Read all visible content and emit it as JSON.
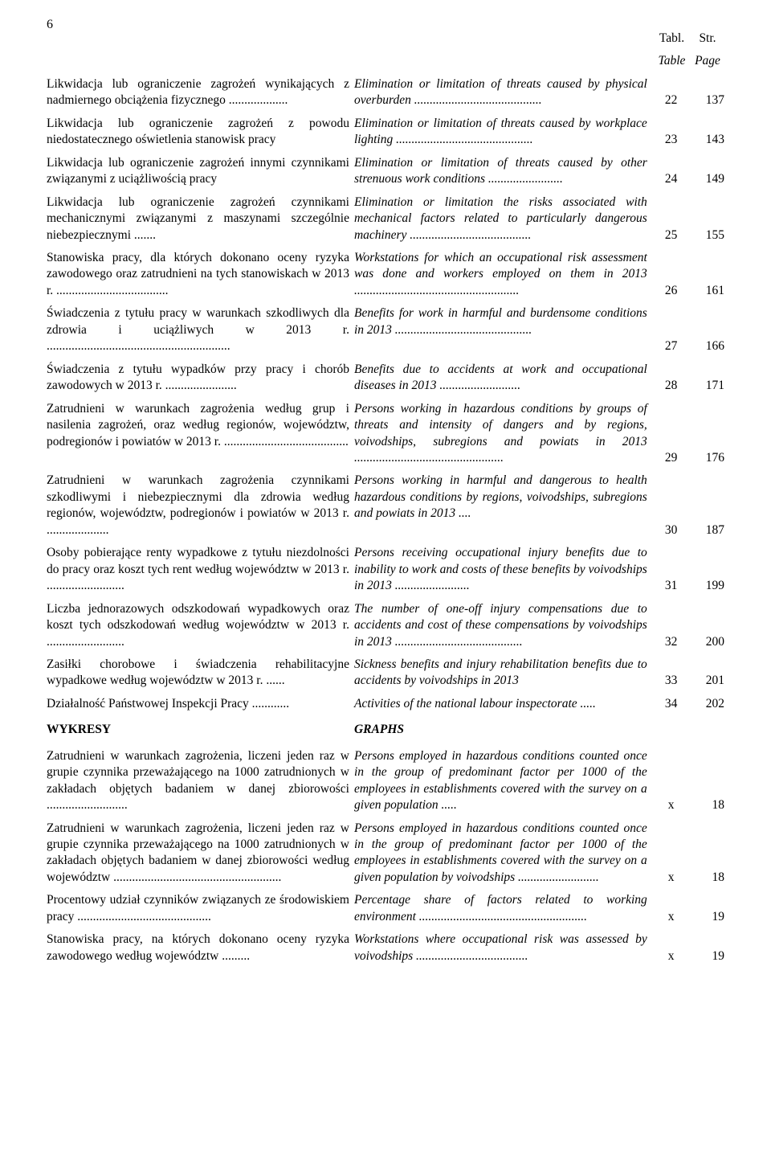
{
  "page_number_top": "6",
  "header": {
    "tabl": "Tabl.",
    "str": "Str.",
    "table": "Table",
    "page": "Page"
  },
  "rows": [
    {
      "pl": "Likwidacja lub ograniczenie zagrożeń wynikających z nadmiernego obciążenia fizycznego ...................",
      "en": "Elimination or limitation of threats caused by physical overburden .........................................",
      "tab": "22",
      "page": "137"
    },
    {
      "pl": "Likwidacja lub ograniczenie zagrożeń z powodu niedostatecznego oświetlenia stanowisk pracy",
      "en": "Elimination or limitation of threats caused by workplace lighting ............................................",
      "tab": "23",
      "page": "143"
    },
    {
      "pl": "Likwidacja lub ograniczenie zagrożeń innymi czynnikami związanymi z uciążliwością pracy",
      "en": "Elimination or limitation of threats caused by other strenuous work conditions ........................",
      "tab": "24",
      "page": "149"
    },
    {
      "pl": "Likwidacja lub ograniczenie zagrożeń czynnikami mechanicznymi związanymi z maszynami szczególnie niebezpiecznymi .......",
      "en": "Elimination or limitation the risks associated with mechanical factors related to particularly dangerous machinery .......................................",
      "tab": "25",
      "page": "155"
    },
    {
      "pl": "Stanowiska pracy, dla których dokonano oceny ryzyka zawodowego oraz zatrudnieni na tych stanowiskach w 2013 r. ....................................",
      "en": "Workstations for which an occupational risk assessment was done and workers employed on them in 2013 .....................................................",
      "tab": "26",
      "page": "161"
    },
    {
      "pl": "Świadczenia z tytułu pracy w warunkach szkodliwych dla zdrowia i uciążliwych w 2013 r. ...........................................................",
      "en": "Benefits for work in harmful and burdensome conditions in 2013 ............................................",
      "tab": "27",
      "page": "166"
    },
    {
      "pl": "Świadczenia z tytułu wypadków przy pracy i chorób zawodowych w 2013 r. .......................",
      "en": "Benefits due to accidents at work and occupational diseases in 2013 ..........................",
      "tab": "28",
      "page": "171"
    },
    {
      "pl": "Zatrudnieni w warunkach zagrożenia według grup i nasilenia zagrożeń, oraz według regionów, województw, podregionów i powiatów w 2013 r. ........................................",
      "en": "Persons working in hazardous conditions by groups of threats and intensity of dangers and by regions, voivodships, subregions and powiats in 2013 ................................................",
      "tab": "29",
      "page": "176"
    },
    {
      "pl": "Zatrudnieni w warunkach zagrożenia czynnikami szkodliwymi i niebezpiecznymi dla zdrowia według regionów, województw, podregionów i powiatów w 2013 r. ....................",
      "en": "Persons working in harmful and dangerous to health hazardous conditions by regions, voivodships, subregions and powiats in 2013 ....",
      "tab": "30",
      "page": "187"
    },
    {
      "pl": "Osoby pobierające renty wypadkowe z tytułu niezdolności do pracy oraz koszt tych rent według województw w 2013 r. .........................",
      "en": "Persons receiving occupational injury benefits due to inability to work and costs of these benefits by voivodships in 2013 ........................",
      "tab": "31",
      "page": "199"
    },
    {
      "pl": "Liczba jednorazowych odszkodowań wypadkowych oraz koszt tych odszkodowań według województw w 2013 r. .........................",
      "en": "The number of one-off injury compensations due to accidents and cost of these compensations by voivodships in 2013 .........................................",
      "tab": "32",
      "page": "200"
    },
    {
      "pl": "Zasiłki chorobowe i świadczenia rehabilitacyjne wypadkowe według województw w 2013 r. ......",
      "en": "Sickness benefits and injury rehabilitation benefits due to accidents by voivodships in 2013",
      "tab": "33",
      "page": "201"
    },
    {
      "pl": "Działalność Państwowej Inspekcji Pracy ............",
      "en": "Activities of the national labour inspectorate .....",
      "tab": "34",
      "page": "202"
    }
  ],
  "section": {
    "pl": "WYKRESY",
    "en": "GRAPHS"
  },
  "rows2": [
    {
      "pl": "Zatrudnieni w warunkach zagrożenia, liczeni jeden raz w grupie czynnika przeważającego na 1000 zatrudnionych w zakładach objętych badaniem w danej zbiorowości ..........................",
      "en": "Persons employed in hazardous conditions counted once in the group of predominant factor per 1000 of the employees in establishments covered with the survey on a given population .....",
      "tab": "x",
      "page": "18"
    },
    {
      "pl": "Zatrudnieni w warunkach zagrożenia, liczeni jeden raz w grupie czynnika przeważającego na 1000 zatrudnionych w zakładach objętych badaniem w danej zbiorowości według województw ......................................................",
      "en": "Persons employed in hazardous conditions counted once in the group of predominant factor per 1000 of the employees in establishments covered with the survey on a given population by voivodships ..........................",
      "tab": "x",
      "page": "18"
    },
    {
      "pl": "Procentowy udział czynników związanych ze środowiskiem pracy ...........................................",
      "en": "Percentage share of factors related to working environment ......................................................",
      "tab": "x",
      "page": "19"
    },
    {
      "pl": "Stanowiska pracy, na których dokonano oceny ryzyka zawodowego według województw .........",
      "en": "Workstations where occupational risk was assessed by voivodships ....................................",
      "tab": "x",
      "page": "19"
    }
  ]
}
